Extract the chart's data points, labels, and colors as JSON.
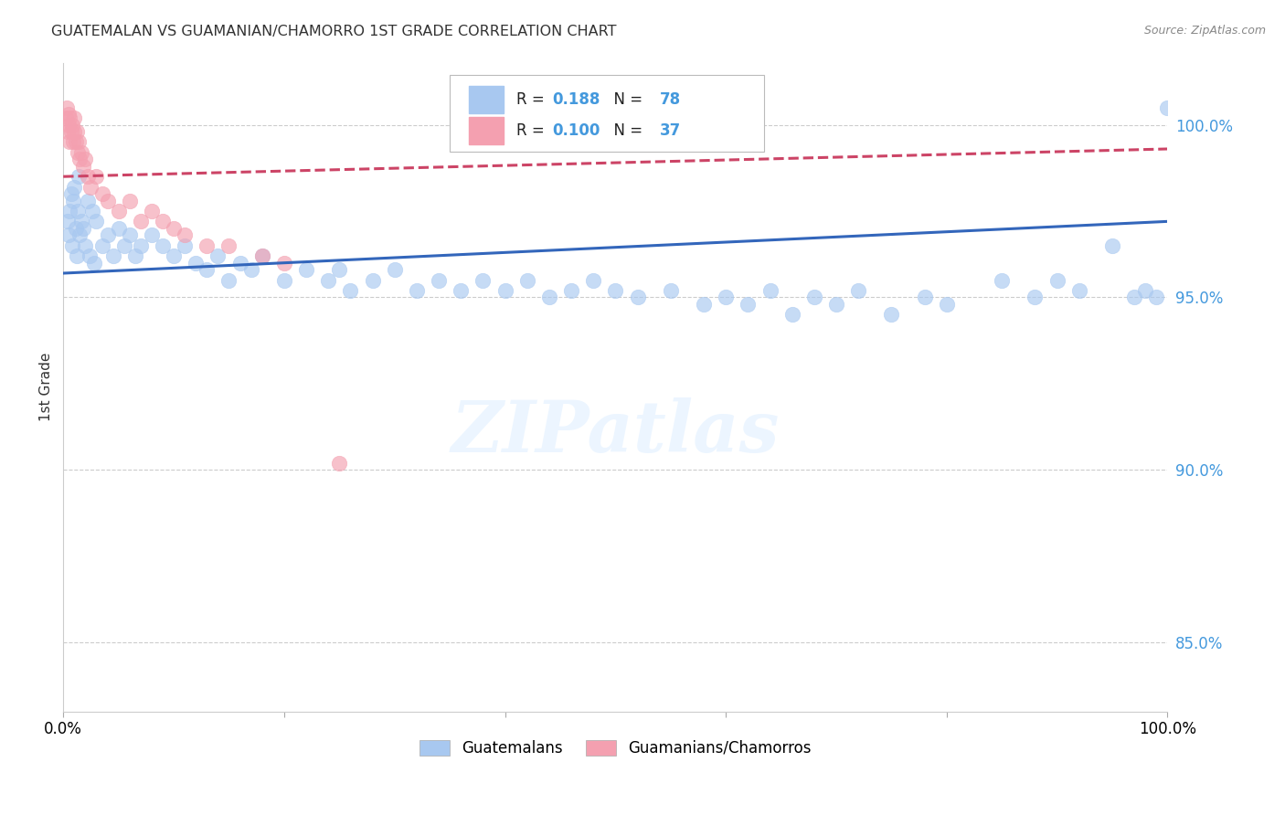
{
  "title": "GUATEMALAN VS GUAMANIAN/CHAMORRO 1ST GRADE CORRELATION CHART",
  "source": "Source: ZipAtlas.com",
  "ylabel": "1st Grade",
  "xlim": [
    0,
    100
  ],
  "ylim": [
    83.0,
    101.8
  ],
  "yticks": [
    85.0,
    90.0,
    95.0,
    100.0
  ],
  "blue_r": 0.188,
  "blue_n": 78,
  "pink_r": 0.1,
  "pink_n": 37,
  "blue_color": "#A8C8F0",
  "pink_color": "#F4A0B0",
  "blue_line_color": "#3366BB",
  "pink_line_color": "#CC4466",
  "legend_blue_label": "Guatemalans",
  "legend_pink_label": "Guamanians/Chamorros",
  "watermark": "ZIPatlas",
  "background_color": "#ffffff",
  "grid_color": "#cccccc",
  "title_color": "#333333",
  "right_axis_label_color": "#4499dd",
  "blue_line_x0": 0,
  "blue_line_y0": 95.7,
  "blue_line_x1": 100,
  "blue_line_y1": 97.2,
  "pink_line_x0": 0,
  "pink_line_y0": 98.5,
  "pink_line_x1": 100,
  "pink_line_y1": 99.3,
  "blue_scatter_x": [
    0.4,
    0.5,
    0.6,
    0.7,
    0.8,
    0.9,
    1.0,
    1.1,
    1.2,
    1.3,
    1.4,
    1.5,
    1.6,
    1.8,
    2.0,
    2.2,
    2.4,
    2.6,
    2.8,
    3.0,
    3.5,
    4.0,
    4.5,
    5.0,
    5.5,
    6.0,
    6.5,
    7.0,
    8.0,
    9.0,
    10.0,
    11.0,
    12.0,
    13.0,
    14.0,
    15.0,
    16.0,
    17.0,
    18.0,
    20.0,
    22.0,
    24.0,
    25.0,
    26.0,
    28.0,
    30.0,
    32.0,
    34.0,
    36.0,
    38.0,
    40.0,
    42.0,
    44.0,
    46.0,
    48.0,
    50.0,
    52.0,
    55.0,
    58.0,
    60.0,
    62.0,
    64.0,
    66.0,
    68.0,
    70.0,
    72.0,
    75.0,
    78.0,
    80.0,
    85.0,
    88.0,
    90.0,
    92.0,
    95.0,
    97.0,
    98.0,
    99.0,
    100.0
  ],
  "blue_scatter_y": [
    97.2,
    96.8,
    97.5,
    98.0,
    96.5,
    97.8,
    98.2,
    97.0,
    96.2,
    97.5,
    98.5,
    96.8,
    97.2,
    97.0,
    96.5,
    97.8,
    96.2,
    97.5,
    96.0,
    97.2,
    96.5,
    96.8,
    96.2,
    97.0,
    96.5,
    96.8,
    96.2,
    96.5,
    96.8,
    96.5,
    96.2,
    96.5,
    96.0,
    95.8,
    96.2,
    95.5,
    96.0,
    95.8,
    96.2,
    95.5,
    95.8,
    95.5,
    95.8,
    95.2,
    95.5,
    95.8,
    95.2,
    95.5,
    95.2,
    95.5,
    95.2,
    95.5,
    95.0,
    95.2,
    95.5,
    95.2,
    95.0,
    95.2,
    94.8,
    95.0,
    94.8,
    95.2,
    94.5,
    95.0,
    94.8,
    95.2,
    94.5,
    95.0,
    94.8,
    95.5,
    95.0,
    95.5,
    95.2,
    96.5,
    95.0,
    95.2,
    95.0,
    100.5
  ],
  "pink_scatter_x": [
    0.2,
    0.3,
    0.4,
    0.5,
    0.5,
    0.6,
    0.6,
    0.7,
    0.8,
    0.9,
    1.0,
    1.0,
    1.1,
    1.2,
    1.3,
    1.4,
    1.5,
    1.6,
    1.8,
    2.0,
    2.2,
    2.5,
    3.0,
    3.5,
    4.0,
    5.0,
    6.0,
    7.0,
    8.0,
    9.0,
    10.0,
    11.0,
    13.0,
    15.0,
    18.0,
    20.0,
    25.0
  ],
  "pink_scatter_y": [
    100.2,
    100.5,
    99.8,
    100.0,
    100.3,
    99.5,
    100.2,
    99.8,
    100.0,
    99.5,
    100.2,
    99.8,
    99.5,
    99.8,
    99.2,
    99.5,
    99.0,
    99.2,
    98.8,
    99.0,
    98.5,
    98.2,
    98.5,
    98.0,
    97.8,
    97.5,
    97.8,
    97.2,
    97.5,
    97.2,
    97.0,
    96.8,
    96.5,
    96.5,
    96.2,
    96.0,
    90.2
  ]
}
